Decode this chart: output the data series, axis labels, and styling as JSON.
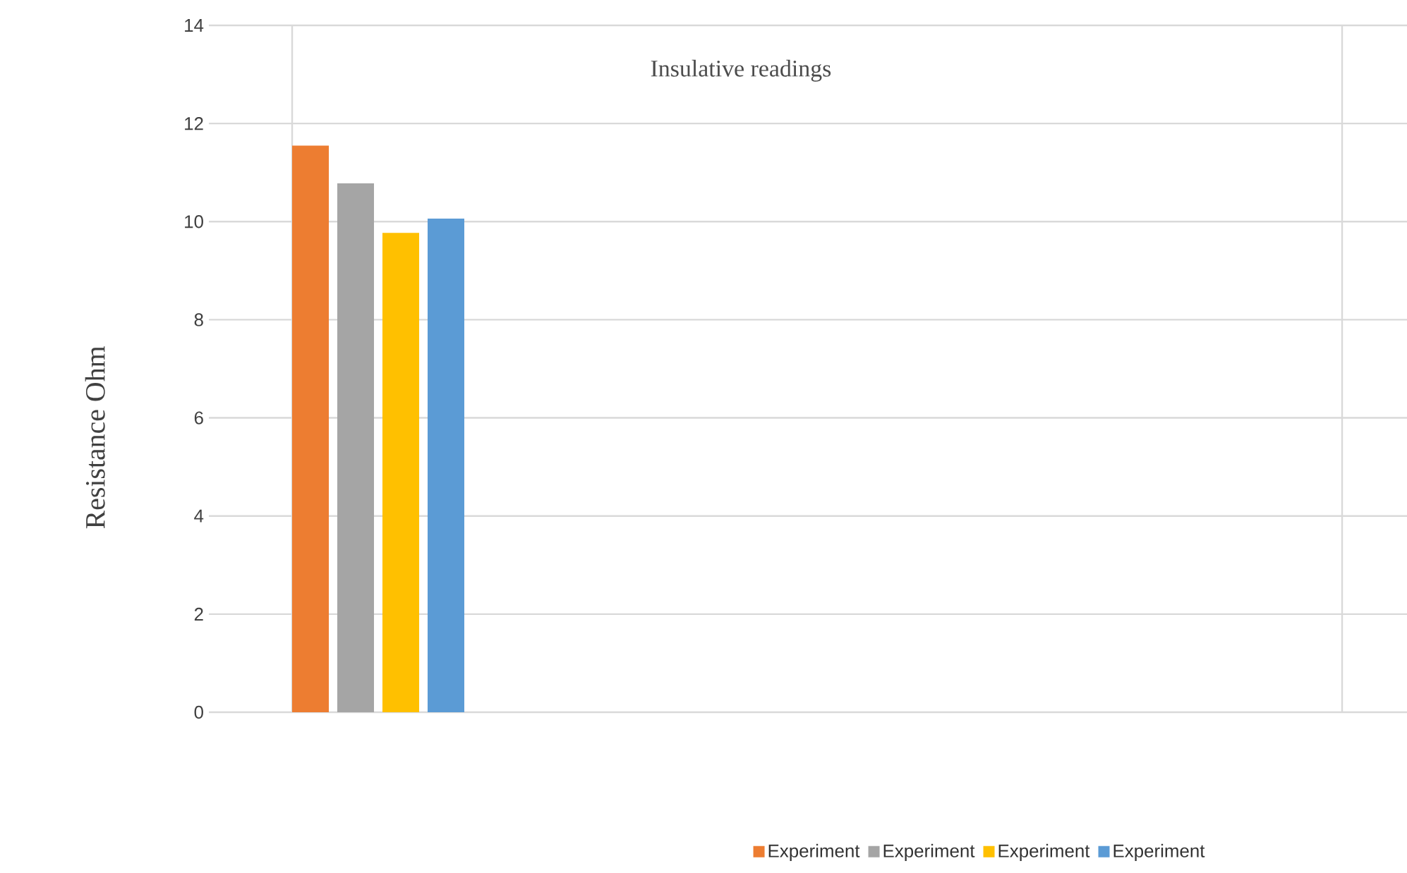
{
  "chart_data": {
    "type": "bar",
    "title": "Insulative readings",
    "ylabel": "Resistance Ohm",
    "categories": [
      null
    ],
    "series": [
      {
        "name": "Experiment",
        "color": "#ed7d31",
        "values": [
          11.55
        ]
      },
      {
        "name": "Experiment",
        "color": "#a5a5a5",
        "values": [
          10.78
        ]
      },
      {
        "name": "Experiment",
        "color": "#ffc000",
        "values": [
          9.77
        ]
      },
      {
        "name": "Experiment",
        "color": "#5b9bd5",
        "values": [
          10.06
        ]
      }
    ],
    "ylim": [
      0,
      14
    ],
    "yticks": [
      0,
      2,
      4,
      6,
      8,
      10,
      12,
      14
    ],
    "grid": true,
    "legend": "bottom"
  }
}
